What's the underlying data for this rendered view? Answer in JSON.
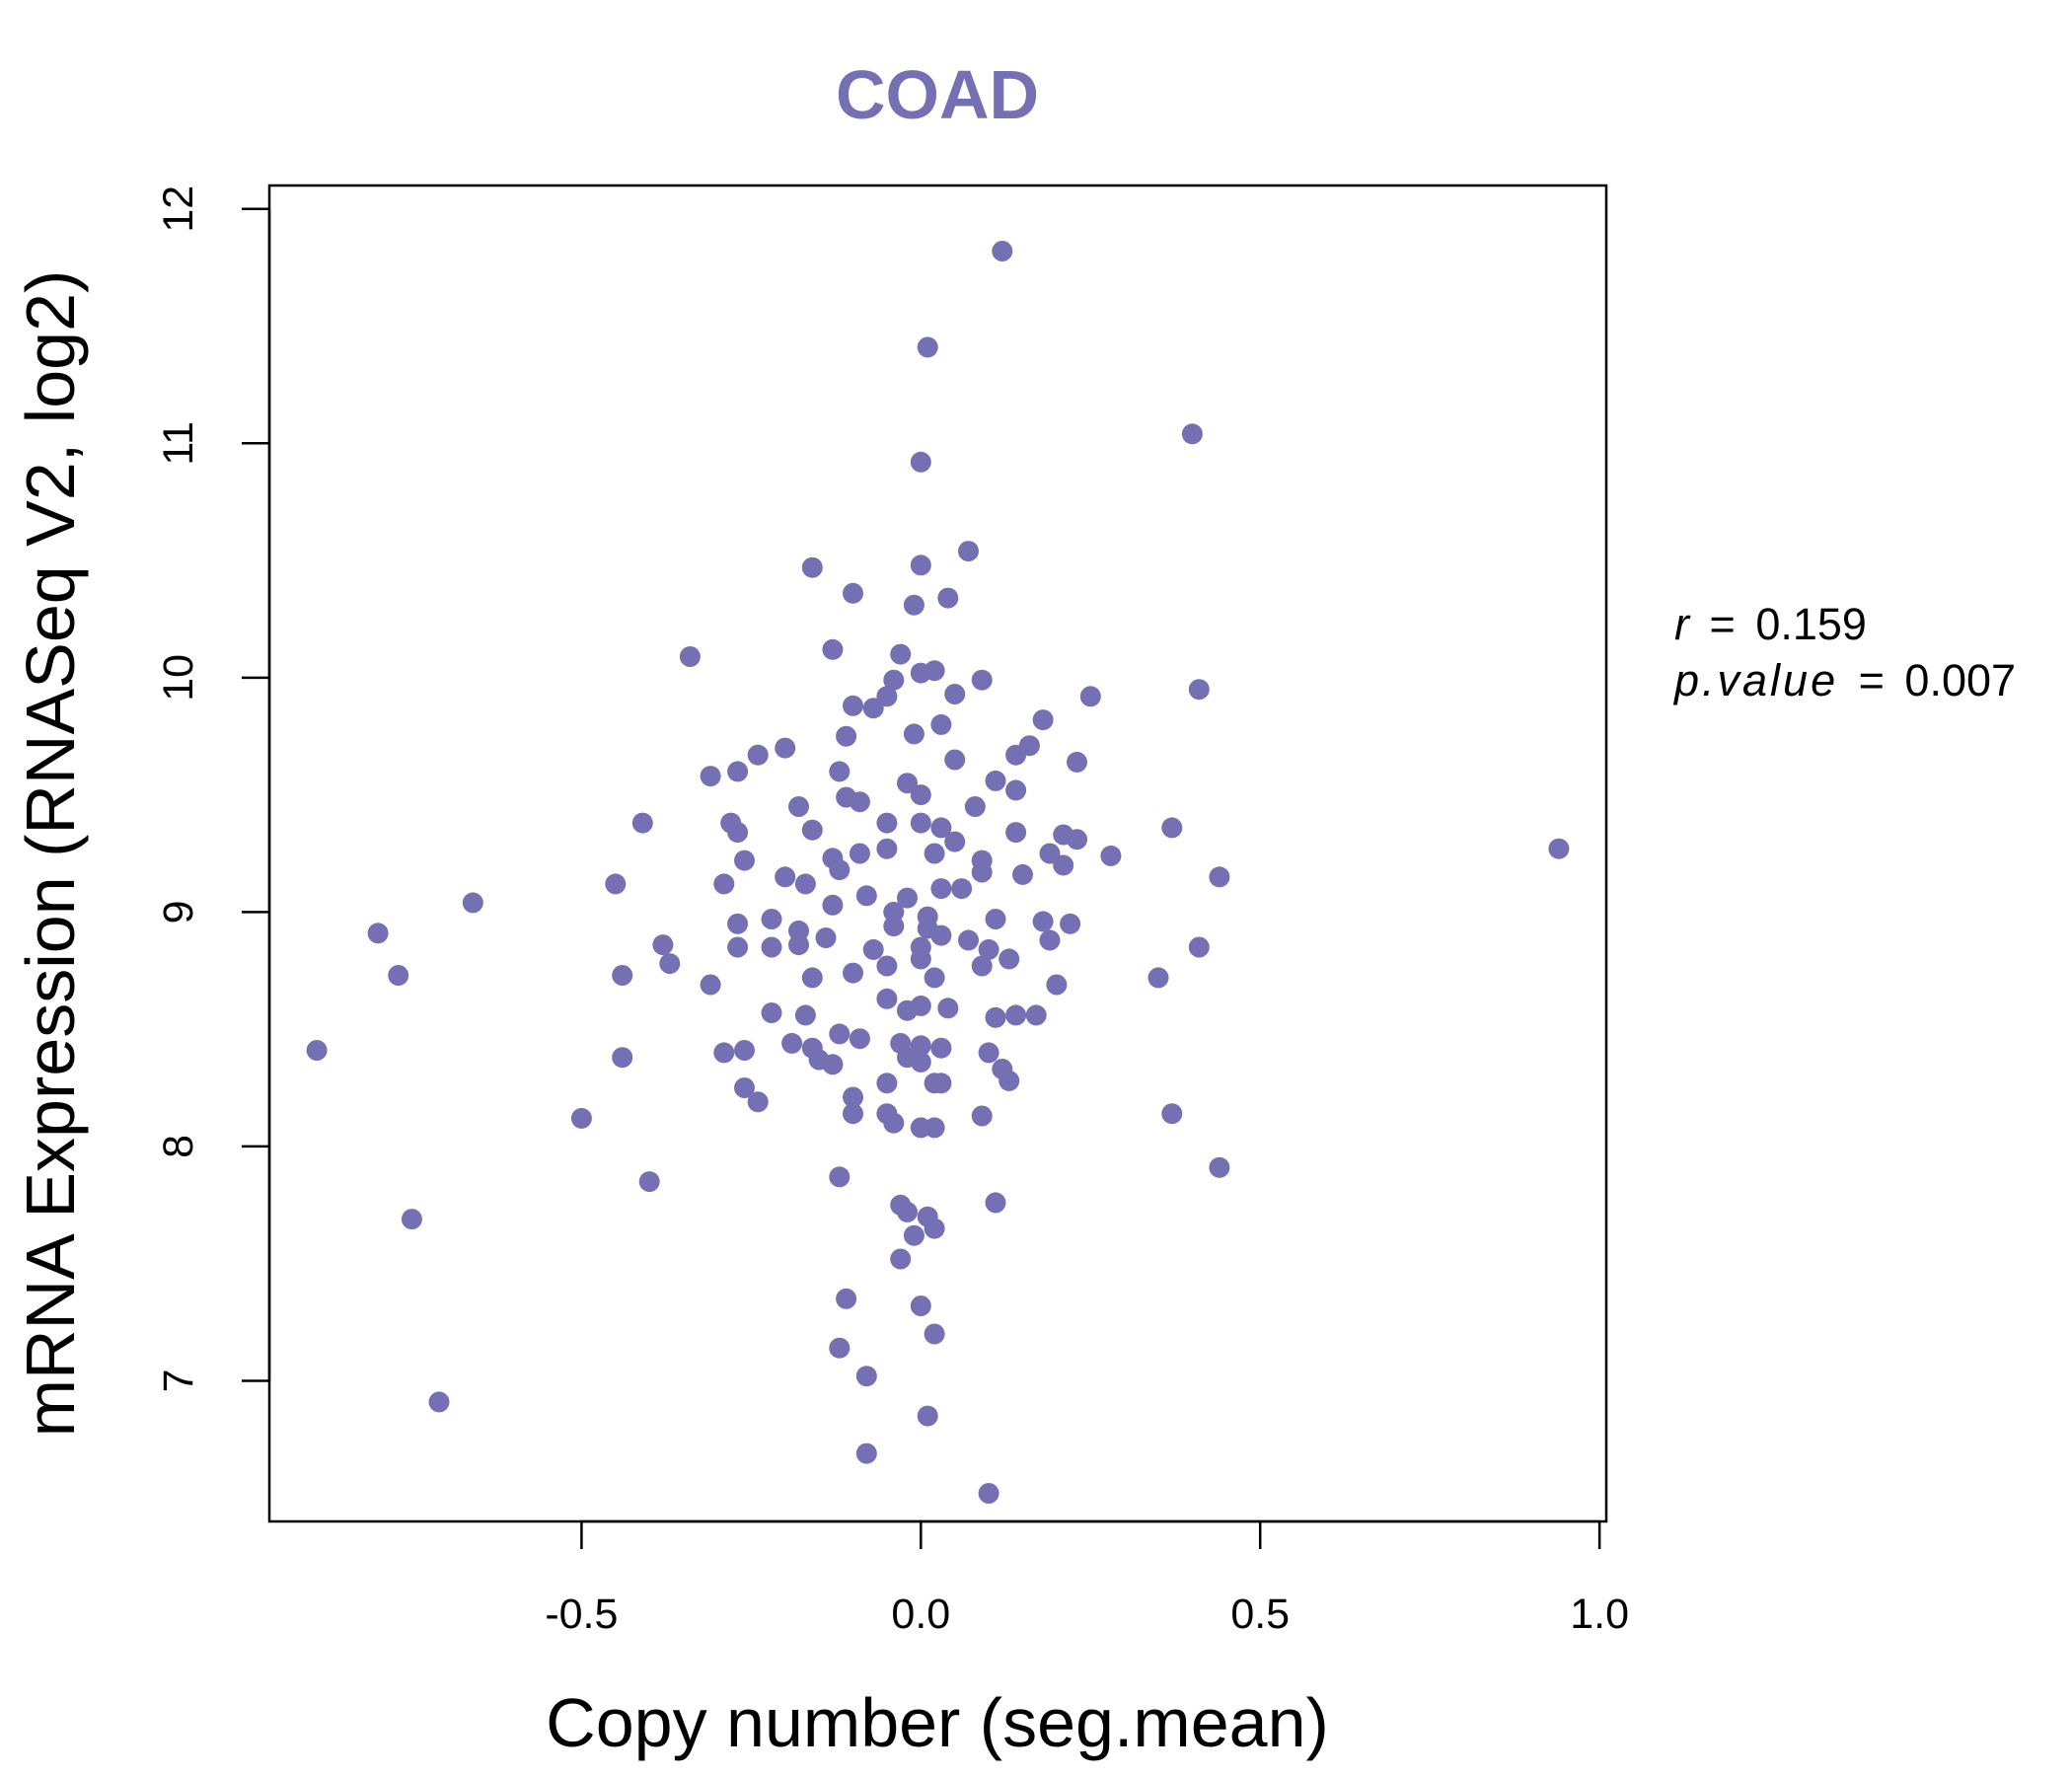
{
  "chart_data": {
    "type": "scatter",
    "title": "COAD",
    "xlabel": "Copy number (seg.mean)",
    "ylabel": "mRNA Expression (RNASeq V2, log2)",
    "xlim": [
      -0.96,
      1.01
    ],
    "ylim": [
      6.4,
      12.1
    ],
    "x_ticks": [
      -0.5,
      0.0,
      0.5,
      1.0
    ],
    "x_tick_labels": [
      "-0.5",
      "0.0",
      "0.5",
      "1.0"
    ],
    "y_ticks": [
      7,
      8,
      9,
      10,
      11,
      12
    ],
    "y_tick_labels": [
      "7",
      "8",
      "9",
      "10",
      "11",
      "12"
    ],
    "grid": false,
    "stats": {
      "r_symbol": "r",
      "r_value": "0.159",
      "p_symbol": "p.value",
      "p_value": "0.007"
    },
    "colors": {
      "points": "#7570B3",
      "title": "#7570B3",
      "axis": "#000000"
    },
    "points": [
      [
        0.12,
        11.82
      ],
      [
        0.01,
        11.41
      ],
      [
        0.0,
        10.92
      ],
      [
        0.4,
        11.04
      ],
      [
        -0.16,
        10.47
      ],
      [
        0.0,
        10.48
      ],
      [
        0.07,
        10.54
      ],
      [
        -0.1,
        10.36
      ],
      [
        -0.01,
        10.31
      ],
      [
        0.04,
        10.34
      ],
      [
        -0.34,
        10.09
      ],
      [
        -0.13,
        10.12
      ],
      [
        -0.03,
        10.1
      ],
      [
        -0.04,
        9.99
      ],
      [
        0.0,
        10.02
      ],
      [
        0.02,
        10.03
      ],
      [
        0.09,
        9.99
      ],
      [
        0.41,
        9.95
      ],
      [
        0.25,
        9.92
      ],
      [
        -0.05,
        9.92
      ],
      [
        -0.1,
        9.88
      ],
      [
        -0.07,
        9.87
      ],
      [
        0.05,
        9.93
      ],
      [
        0.18,
        9.82
      ],
      [
        -0.11,
        9.75
      ],
      [
        -0.01,
        9.76
      ],
      [
        0.03,
        9.8
      ],
      [
        0.16,
        9.71
      ],
      [
        -0.2,
        9.7
      ],
      [
        -0.24,
        9.67
      ],
      [
        -0.27,
        9.6
      ],
      [
        -0.31,
        9.58
      ],
      [
        -0.12,
        9.6
      ],
      [
        -0.02,
        9.55
      ],
      [
        0.05,
        9.65
      ],
      [
        0.14,
        9.67
      ],
      [
        0.23,
        9.64
      ],
      [
        0.11,
        9.56
      ],
      [
        0.0,
        9.5
      ],
      [
        -0.11,
        9.49
      ],
      [
        -0.18,
        9.45
      ],
      [
        -0.09,
        9.47
      ],
      [
        0.08,
        9.45
      ],
      [
        0.14,
        9.52
      ],
      [
        -0.41,
        9.38
      ],
      [
        -0.28,
        9.38
      ],
      [
        -0.27,
        9.34
      ],
      [
        -0.16,
        9.35
      ],
      [
        -0.05,
        9.38
      ],
      [
        0.0,
        9.38
      ],
      [
        0.03,
        9.36
      ],
      [
        0.14,
        9.34
      ],
      [
        0.21,
        9.33
      ],
      [
        0.23,
        9.31
      ],
      [
        0.37,
        9.36
      ],
      [
        -0.13,
        9.23
      ],
      [
        -0.09,
        9.25
      ],
      [
        -0.05,
        9.27
      ],
      [
        0.02,
        9.25
      ],
      [
        0.05,
        9.3
      ],
      [
        0.09,
        9.22
      ],
      [
        0.19,
        9.25
      ],
      [
        0.28,
        9.24
      ],
      [
        -0.26,
        9.22
      ],
      [
        -0.2,
        9.15
      ],
      [
        -0.12,
        9.18
      ],
      [
        0.09,
        9.17
      ],
      [
        0.15,
        9.16
      ],
      [
        0.21,
        9.2
      ],
      [
        0.44,
        9.15
      ],
      [
        0.94,
        9.27
      ],
      [
        -0.45,
        9.12
      ],
      [
        -0.29,
        9.12
      ],
      [
        -0.17,
        9.12
      ],
      [
        -0.08,
        9.07
      ],
      [
        -0.02,
        9.06
      ],
      [
        0.03,
        9.1
      ],
      [
        0.06,
        9.1
      ],
      [
        -0.66,
        9.04
      ],
      [
        -0.13,
        9.03
      ],
      [
        -0.04,
        9.0
      ],
      [
        0.01,
        8.98
      ],
      [
        -0.22,
        8.97
      ],
      [
        -0.27,
        8.95
      ],
      [
        -0.18,
        8.92
      ],
      [
        -0.14,
        8.89
      ],
      [
        -0.04,
        8.94
      ],
      [
        0.01,
        8.93
      ],
      [
        0.11,
        8.97
      ],
      [
        0.18,
        8.96
      ],
      [
        0.22,
        8.95
      ],
      [
        -0.8,
        8.91
      ],
      [
        -0.38,
        8.86
      ],
      [
        -0.27,
        8.85
      ],
      [
        -0.22,
        8.85
      ],
      [
        -0.18,
        8.86
      ],
      [
        -0.07,
        8.84
      ],
      [
        0.0,
        8.85
      ],
      [
        0.03,
        8.9
      ],
      [
        0.07,
        8.88
      ],
      [
        0.1,
        8.84
      ],
      [
        0.19,
        8.88
      ],
      [
        0.41,
        8.85
      ],
      [
        -0.37,
        8.78
      ],
      [
        -0.31,
        8.69
      ],
      [
        -0.16,
        8.72
      ],
      [
        -0.1,
        8.74
      ],
      [
        -0.05,
        8.77
      ],
      [
        0.0,
        8.8
      ],
      [
        0.02,
        8.72
      ],
      [
        0.09,
        8.77
      ],
      [
        0.13,
        8.8
      ],
      [
        0.2,
        8.69
      ],
      [
        0.35,
        8.72
      ],
      [
        -0.77,
        8.73
      ],
      [
        -0.44,
        8.73
      ],
      [
        -0.22,
        8.57
      ],
      [
        -0.17,
        8.56
      ],
      [
        -0.05,
        8.63
      ],
      [
        -0.02,
        8.58
      ],
      [
        0.0,
        8.6
      ],
      [
        0.04,
        8.59
      ],
      [
        0.11,
        8.55
      ],
      [
        0.14,
        8.56
      ],
      [
        0.17,
        8.56
      ],
      [
        -0.89,
        8.41
      ],
      [
        -0.44,
        8.38
      ],
      [
        -0.29,
        8.4
      ],
      [
        -0.26,
        8.41
      ],
      [
        -0.19,
        8.44
      ],
      [
        -0.16,
        8.42
      ],
      [
        -0.12,
        8.48
      ],
      [
        -0.09,
        8.46
      ],
      [
        -0.03,
        8.44
      ],
      [
        0.0,
        8.43
      ],
      [
        0.03,
        8.42
      ],
      [
        0.1,
        8.4
      ],
      [
        -0.15,
        8.37
      ],
      [
        -0.13,
        8.35
      ],
      [
        -0.02,
        8.38
      ],
      [
        0.0,
        8.36
      ],
      [
        0.12,
        8.33
      ],
      [
        0.13,
        8.28
      ],
      [
        -0.26,
        8.25
      ],
      [
        -0.24,
        8.19
      ],
      [
        -0.1,
        8.21
      ],
      [
        -0.05,
        8.27
      ],
      [
        0.02,
        8.27
      ],
      [
        0.03,
        8.27
      ],
      [
        -0.5,
        8.12
      ],
      [
        -0.1,
        8.14
      ],
      [
        -0.05,
        8.14
      ],
      [
        -0.04,
        8.1
      ],
      [
        0.0,
        8.08
      ],
      [
        0.02,
        8.08
      ],
      [
        0.09,
        8.13
      ],
      [
        0.37,
        8.14
      ],
      [
        -0.4,
        7.85
      ],
      [
        -0.12,
        7.87
      ],
      [
        0.11,
        7.76
      ],
      [
        0.44,
        7.91
      ],
      [
        -0.75,
        7.69
      ],
      [
        -0.03,
        7.75
      ],
      [
        -0.02,
        7.72
      ],
      [
        0.01,
        7.7
      ],
      [
        0.02,
        7.65
      ],
      [
        -0.01,
        7.62
      ],
      [
        -0.03,
        7.52
      ],
      [
        -0.11,
        7.35
      ],
      [
        0.0,
        7.32
      ],
      [
        0.02,
        7.2
      ],
      [
        -0.12,
        7.14
      ],
      [
        -0.08,
        7.02
      ],
      [
        -0.71,
        6.91
      ],
      [
        0.01,
        6.85
      ],
      [
        -0.08,
        6.69
      ],
      [
        0.1,
        6.52
      ]
    ]
  }
}
